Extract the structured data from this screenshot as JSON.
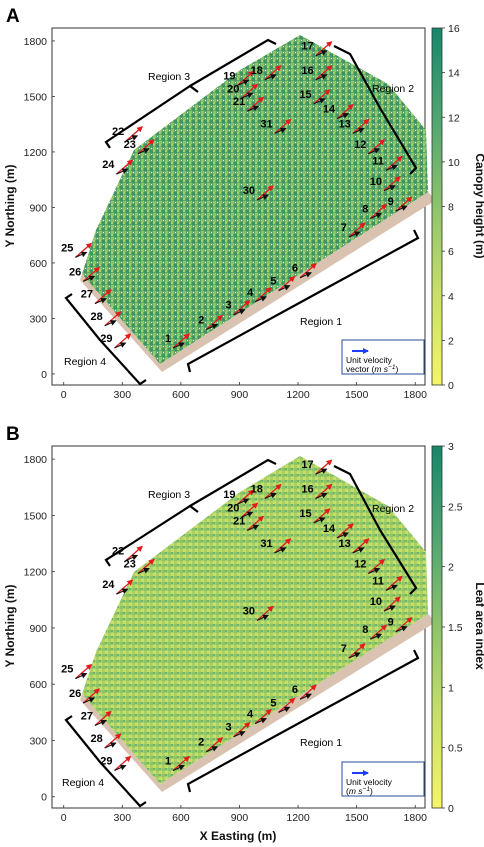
{
  "chart_data": [
    {
      "type": "heatmap",
      "panel_label": "A",
      "xlabel": "",
      "ylabel": "Y Northing (m)",
      "x_ticks": [
        "0",
        "300",
        "600",
        "900",
        "1200",
        "1500",
        "1800"
      ],
      "y_ticks": [
        "0",
        "300",
        "600",
        "900",
        "1200",
        "1500",
        "1800"
      ],
      "xlim": [
        -60,
        1850
      ],
      "ylim": [
        -60,
        1870
      ],
      "colorbar": {
        "label": "Canopy height (m)",
        "ticks": [
          "0",
          "2",
          "4",
          "6",
          "8",
          "10",
          "12",
          "14",
          "16"
        ],
        "range": [
          0,
          16
        ],
        "colors": [
          "#f5f56a",
          "#c9e06a",
          "#8ec36c",
          "#4fa572",
          "#16876a"
        ]
      },
      "regions": [
        "Region 1",
        "Region 2",
        "Region 3",
        "Region 4"
      ],
      "legend_text": [
        "Unit velocity",
        "vector (",
        "m s",
        "−1",
        ")"
      ],
      "legend_arrow_color": "#1f3dff"
    },
    {
      "type": "heatmap",
      "panel_label": "B",
      "xlabel": "X Easting (m)",
      "ylabel": "Y Northing (m)",
      "x_ticks": [
        "0",
        "300",
        "600",
        "900",
        "1200",
        "1500",
        "1800"
      ],
      "y_ticks": [
        "0",
        "300",
        "600",
        "900",
        "1200",
        "1500",
        "1800"
      ],
      "xlim": [
        -60,
        1850
      ],
      "ylim": [
        -60,
        1870
      ],
      "colorbar": {
        "label": "Leaf area index",
        "ticks": [
          "0",
          "0.5",
          "1",
          "1.5",
          "2",
          "2.5",
          "3"
        ],
        "range": [
          0,
          3
        ],
        "colors": [
          "#f5f56a",
          "#c9e06a",
          "#8ec36c",
          "#4fa572",
          "#16876a"
        ]
      },
      "regions": [
        "Region 1",
        "Region 2",
        "Region 3",
        "Region 4"
      ],
      "legend_text": [
        "Unit velocity",
        "(",
        "m s",
        "−1",
        ")"
      ],
      "legend_arrow_color": "#1f3dff"
    }
  ],
  "stations": [
    {
      "id": "1",
      "x": 560,
      "y": 140
    },
    {
      "id": "2",
      "x": 730,
      "y": 240
    },
    {
      "id": "3",
      "x": 870,
      "y": 320
    },
    {
      "id": "4",
      "x": 980,
      "y": 390
    },
    {
      "id": "5",
      "x": 1100,
      "y": 450
    },
    {
      "id": "6",
      "x": 1210,
      "y": 520
    },
    {
      "id": "7",
      "x": 1460,
      "y": 740
    },
    {
      "id": "8",
      "x": 1570,
      "y": 840
    },
    {
      "id": "9",
      "x": 1700,
      "y": 880
    },
    {
      "id": "10",
      "x": 1640,
      "y": 990
    },
    {
      "id": "11",
      "x": 1650,
      "y": 1100
    },
    {
      "id": "12",
      "x": 1560,
      "y": 1190
    },
    {
      "id": "13",
      "x": 1480,
      "y": 1300
    },
    {
      "id": "14",
      "x": 1400,
      "y": 1380
    },
    {
      "id": "15",
      "x": 1280,
      "y": 1460
    },
    {
      "id": "16",
      "x": 1290,
      "y": 1590
    },
    {
      "id": "17",
      "x": 1290,
      "y": 1720
    },
    {
      "id": "18",
      "x": 1030,
      "y": 1590
    },
    {
      "id": "19",
      "x": 890,
      "y": 1560
    },
    {
      "id": "20",
      "x": 910,
      "y": 1490
    },
    {
      "id": "21",
      "x": 940,
      "y": 1420
    },
    {
      "id": "22",
      "x": 320,
      "y": 1260
    },
    {
      "id": "23",
      "x": 380,
      "y": 1190
    },
    {
      "id": "24",
      "x": 270,
      "y": 1080
    },
    {
      "id": "25",
      "x": 60,
      "y": 630
    },
    {
      "id": "26",
      "x": 100,
      "y": 500
    },
    {
      "id": "27",
      "x": 160,
      "y": 380
    },
    {
      "id": "28",
      "x": 210,
      "y": 260
    },
    {
      "id": "29",
      "x": 260,
      "y": 140
    },
    {
      "id": "30",
      "x": 990,
      "y": 940
    },
    {
      "id": "31",
      "x": 1080,
      "y": 1300
    }
  ]
}
